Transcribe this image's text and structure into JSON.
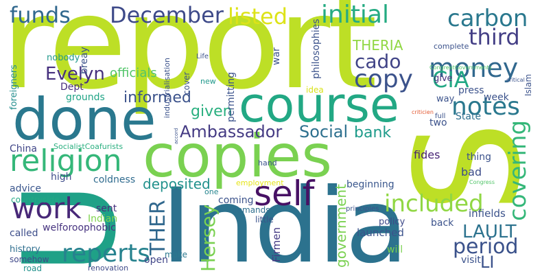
{
  "words": [
    {
      "text": "report",
      "color": "#bddf26"
    },
    {
      "text": "India",
      "color": "#2c728e"
    },
    {
      "text": "copies",
      "color": "#7ad151"
    },
    {
      "text": "course",
      "color": "#22a884"
    },
    {
      "text": "done",
      "color": "#2a788e"
    },
    {
      "text": "S",
      "color": "#bddf26"
    },
    {
      "text": "U",
      "color": "#1fa187"
    },
    {
      "text": "religion",
      "color": "#35b779"
    },
    {
      "text": "December",
      "color": "#3e4a89"
    },
    {
      "text": "money",
      "color": "#31688e"
    },
    {
      "text": "copy",
      "color": "#3b528b"
    },
    {
      "text": "work",
      "color": "#482878"
    },
    {
      "text": "self",
      "color": "#471164"
    },
    {
      "text": "reperts",
      "color": "#26828e"
    },
    {
      "text": "included",
      "color": "#90d743"
    },
    {
      "text": "notes",
      "color": "#2a788e"
    },
    {
      "text": "funds",
      "color": "#31688e"
    },
    {
      "text": "initial",
      "color": "#25ab82"
    },
    {
      "text": "listed",
      "color": "#dde318"
    },
    {
      "text": "carbon",
      "color": "#2a788e"
    },
    {
      "text": "third",
      "color": "#433e85"
    },
    {
      "text": "cado",
      "color": "#414487"
    },
    {
      "text": "CIA",
      "color": "#22a884"
    },
    {
      "text": "covering",
      "color": "#35b779"
    },
    {
      "text": "period",
      "color": "#3b528b"
    },
    {
      "text": "LAULT",
      "color": "#2c728e"
    },
    {
      "text": "THER",
      "color": "#31688e"
    },
    {
      "text": "Hersey",
      "color": "#7ad151"
    },
    {
      "text": "deposited",
      "color": "#21918c"
    },
    {
      "text": "Ambassador",
      "color": "#443a83"
    },
    {
      "text": "Social",
      "color": "#2d708e"
    },
    {
      "text": "bank",
      "color": "#1e9b8a"
    },
    {
      "text": "informed",
      "color": "#3b528b"
    },
    {
      "text": "given",
      "color": "#29af7f"
    },
    {
      "text": "Evelyn",
      "color": "#46307e"
    },
    {
      "text": "THERIA",
      "color": "#90d743"
    },
    {
      "text": "government",
      "color": "#7ad151"
    },
    {
      "text": "LI",
      "color": "#3b528b"
    },
    {
      "text": "officials",
      "color": "#52c569"
    },
    {
      "text": "Dept",
      "color": "#472c7a"
    },
    {
      "text": "grounds",
      "color": "#20a486"
    },
    {
      "text": "foreigners",
      "color": "#228d8d"
    },
    {
      "text": "nobody",
      "color": "#1f988b"
    },
    {
      "text": "breay",
      "color": "#3b528b"
    },
    {
      "text": "China",
      "color": "#404688"
    },
    {
      "text": "SocialistCoafurists",
      "color": "#29af7f"
    },
    {
      "text": "high",
      "color": "#3e4c8a"
    },
    {
      "text": "advice",
      "color": "#39558c"
    },
    {
      "text": "countryside",
      "color": "#22a884"
    },
    {
      "text": "called",
      "color": "#3d4e8a"
    },
    {
      "text": "history",
      "color": "#2e6e8e"
    },
    {
      "text": "somehow",
      "color": "#3f4889"
    },
    {
      "text": "road",
      "color": "#21918c"
    },
    {
      "text": "coldness",
      "color": "#2f6b8e"
    },
    {
      "text": "sent",
      "color": "#472f7d"
    },
    {
      "text": "Indian",
      "color": "#7fd34e"
    },
    {
      "text": "welforoophobic",
      "color": "#46337f"
    },
    {
      "text": "renovation",
      "color": "#3e4a89"
    },
    {
      "text": "open",
      "color": "#404588"
    },
    {
      "text": "make",
      "color": "#2a788e"
    },
    {
      "text": "coming",
      "color": "#3b528b"
    },
    {
      "text": "demands",
      "color": "#2e6f8e"
    },
    {
      "text": "little",
      "color": "#3b528b"
    },
    {
      "text": "employment",
      "color": "#e5e419"
    },
    {
      "text": "one",
      "color": "#25848e"
    },
    {
      "text": "Firmen",
      "color": "#443983"
    },
    {
      "text": "launched",
      "color": "#3b528b"
    },
    {
      "text": "will",
      "color": "#7ad151"
    },
    {
      "text": "beginning",
      "color": "#39568c"
    },
    {
      "text": "policy",
      "color": "#3e4a89"
    },
    {
      "text": "principles",
      "color": "#3b528b"
    },
    {
      "text": "infields",
      "color": "#3b528b"
    },
    {
      "text": "back",
      "color": "#3b528b"
    },
    {
      "text": "visit",
      "color": "#3b528b"
    },
    {
      "text": "bad",
      "color": "#3d4d8a"
    },
    {
      "text": "fides",
      "color": "#482475"
    },
    {
      "text": "thing",
      "color": "#3b528b"
    },
    {
      "text": "Congress",
      "color": "#52c569"
    },
    {
      "text": "two",
      "color": "#3b528b"
    },
    {
      "text": "full",
      "color": "#3b528b"
    },
    {
      "text": "State",
      "color": "#2e6e8e"
    },
    {
      "text": "week",
      "color": "#3b528b"
    },
    {
      "text": "criticien",
      "color": "#e35932"
    },
    {
      "text": "way",
      "color": "#3b528b"
    },
    {
      "text": "press",
      "color": "#3b528b"
    },
    {
      "text": "give",
      "color": "#472d7b"
    },
    {
      "text": "Islam",
      "color": "#3b528b"
    },
    {
      "text": "critical",
      "color": "#3b528b"
    },
    {
      "text": "CongreatGovernments",
      "color": "#52c569"
    },
    {
      "text": "complete",
      "color": "#3b528b"
    },
    {
      "text": "idea",
      "color": "#d8e219"
    },
    {
      "text": "philosophies",
      "color": "#3b528b"
    },
    {
      "text": "war",
      "color": "#3b528b"
    },
    {
      "text": "permitting",
      "color": "#3b528b"
    },
    {
      "text": "new",
      "color": "#1f988b"
    },
    {
      "text": "cover",
      "color": "#3b528b"
    },
    {
      "text": "Life",
      "color": "#3b528b"
    },
    {
      "text": "industrialisation",
      "color": "#3b528b"
    },
    {
      "text": "accord",
      "color": "#3b528b"
    },
    {
      "text": "hand",
      "color": "#3b528b"
    }
  ]
}
